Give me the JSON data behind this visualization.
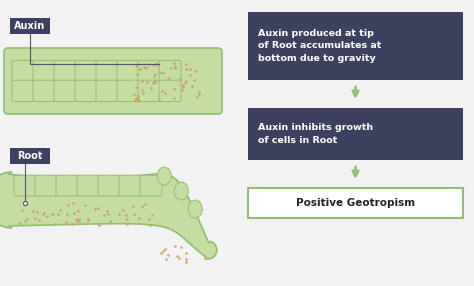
{
  "bg_color": "#f2f2f2",
  "root_fill": "#c5dda0",
  "root_inner": "#d8eab8",
  "cell_border": "#94bb72",
  "dots_color": "#c8a060",
  "label_box_color": "#3d4160",
  "label_text_color": "#ffffff",
  "result_box_color": "#ffffff",
  "result_box_border": "#94bb72",
  "result_text_color": "#222222",
  "arrow_color": "#94bb72",
  "line_color": "#555566",
  "auxin_label": "Auxin",
  "root_label": "Root",
  "box1_text": "Auxin produced at tip\nof Root accumulates at\nbottom due to gravity",
  "box2_text": "Auxin inhibits growth\nof cells in Root",
  "box3_text": "Positive Geotropism"
}
